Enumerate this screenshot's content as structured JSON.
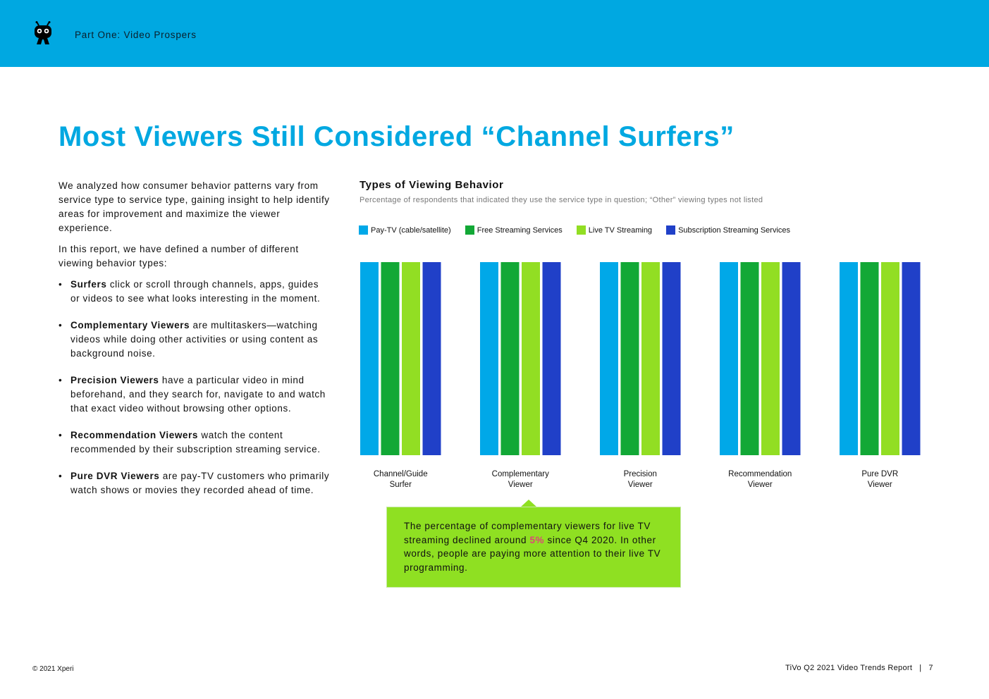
{
  "header": {
    "section_label": "Part One: Video Prospers"
  },
  "page": {
    "title": "Most Viewers Still Considered “Channel Surfers”"
  },
  "intro": {
    "paragraph1": "We analyzed how consumer behavior patterns vary from service type to service type, gaining insight to help identify areas for improvement and maximize the viewer experience.",
    "paragraph2": "In this report, we have defined a number of different viewing behavior types:",
    "bullets": [
      {
        "term": "Surfers",
        "text": " click or scroll through channels, apps, guides or videos to see what looks interesting in the moment."
      },
      {
        "term": "Complementary Viewers",
        "text": " are multitaskers—watching videos while doing other activities or using content as background noise."
      },
      {
        "term": "Precision Viewers",
        "text": " have a particular video in mind beforehand, and they search for, navigate to and watch that exact video without browsing other options."
      },
      {
        "term": "Recommendation Viewers",
        "text": " watch the content recommended by their subscription streaming service."
      },
      {
        "term": "Pure DVR Viewers",
        "text": " are pay-TV customers who primarily watch shows or movies they recorded ahead of time."
      }
    ]
  },
  "chart_data": {
    "type": "bar",
    "title": "Types of Viewing Behavior",
    "subtitle": "Percentage of respondents that indicated they use the service type in question; “Other” viewing types not listed",
    "categories": [
      "Channel/Guide Surfer",
      "Complementary Viewer",
      "Precision Viewer",
      "Recommendation Viewer",
      "Pure DVR Viewer"
    ],
    "category_lines": [
      [
        "Channel/Guide",
        "Surfer"
      ],
      [
        "Complementary",
        "Viewer"
      ],
      [
        "Precision",
        "Viewer"
      ],
      [
        "Recommendation",
        "Viewer"
      ],
      [
        "Pure DVR",
        "Viewer"
      ]
    ],
    "series": [
      {
        "name": "Pay-TV (cable/satellite)",
        "color": "#00a8e8",
        "values": [
          100,
          100,
          100,
          100,
          100
        ]
      },
      {
        "name": "Free Streaming Services",
        "color": "#12a836",
        "values": [
          100,
          100,
          100,
          100,
          100
        ]
      },
      {
        "name": "Live TV Streaming",
        "color": "#92de23",
        "values": [
          100,
          100,
          100,
          100,
          100
        ]
      },
      {
        "name": "Subscription Streaming Services",
        "color": "#2040c8",
        "values": [
          100,
          100,
          100,
          100,
          100
        ]
      }
    ],
    "ylim": [
      0,
      100
    ],
    "xlabel": "",
    "ylabel": ""
  },
  "callout": {
    "text_before": "The percentage of complementary viewers for live TV streaming declined around ",
    "highlight": "5%",
    "text_after": " since Q4 2020. In other words, people are paying more attention to their live TV programming."
  },
  "footer": {
    "copyright": "© 2021 Xperi",
    "report_name": "TiVo Q2 2021 Video Trends Report",
    "separator": "|",
    "page_number": "7"
  }
}
